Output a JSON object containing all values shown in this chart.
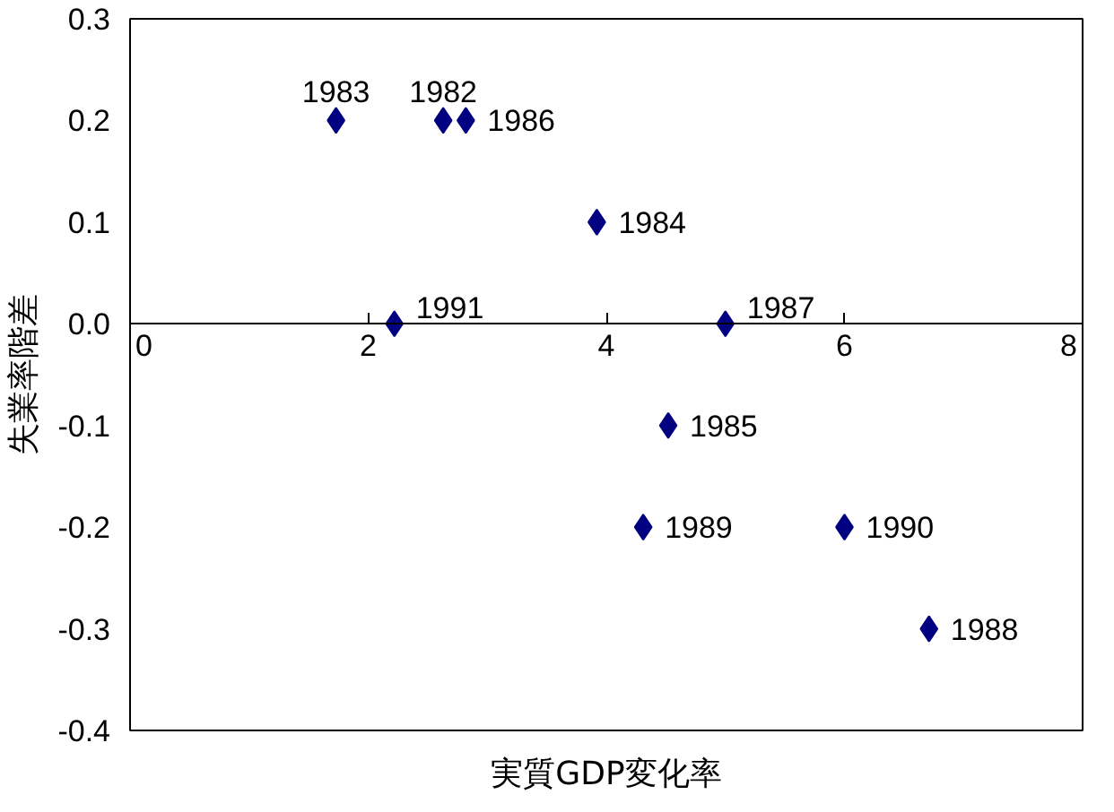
{
  "chart_data": {
    "type": "scatter",
    "xlabel": "実質GDP変化率",
    "ylabel": "失業率階差",
    "x": [
      1.73,
      2.63,
      2.82,
      3.92,
      2.22,
      5.0,
      4.52,
      4.31,
      6.0,
      6.71
    ],
    "series": [
      {
        "color": "#000080",
        "values": [
          0.2,
          0.2,
          0.2,
          0.1,
          0.0,
          0.0,
          -0.1,
          -0.2,
          -0.2,
          -0.3
        ]
      }
    ],
    "annotations": [
      {
        "text": "1983",
        "x": 1.73,
        "y": 0.2
      },
      {
        "text": "1982",
        "x": 2.63,
        "y": 0.2
      },
      {
        "text": "1986",
        "x": 2.82,
        "y": 0.2
      },
      {
        "text": "1984",
        "x": 3.92,
        "y": 0.1
      },
      {
        "text": "1991",
        "x": 2.22,
        "y": 0.0
      },
      {
        "text": "1987",
        "x": 5.0,
        "y": 0.0
      },
      {
        "text": "1985",
        "x": 4.52,
        "y": -0.1
      },
      {
        "text": "1989",
        "x": 4.31,
        "y": -0.2
      },
      {
        "text": "1990",
        "x": 6.0,
        "y": -0.2
      },
      {
        "text": "1988",
        "x": 6.71,
        "y": -0.3
      }
    ],
    "marker": "diamond",
    "grid": false,
    "xlim": [
      0,
      8
    ],
    "xticks": [
      0,
      2,
      4,
      6,
      8
    ],
    "ylim": [
      -0.4,
      0.3
    ],
    "yticks": [
      0.3,
      0.2,
      0.1,
      {
        "value": 0.0,
        "label": "0.0"
      },
      -0.1,
      -0.2,
      -0.3,
      -0.4
    ]
  }
}
